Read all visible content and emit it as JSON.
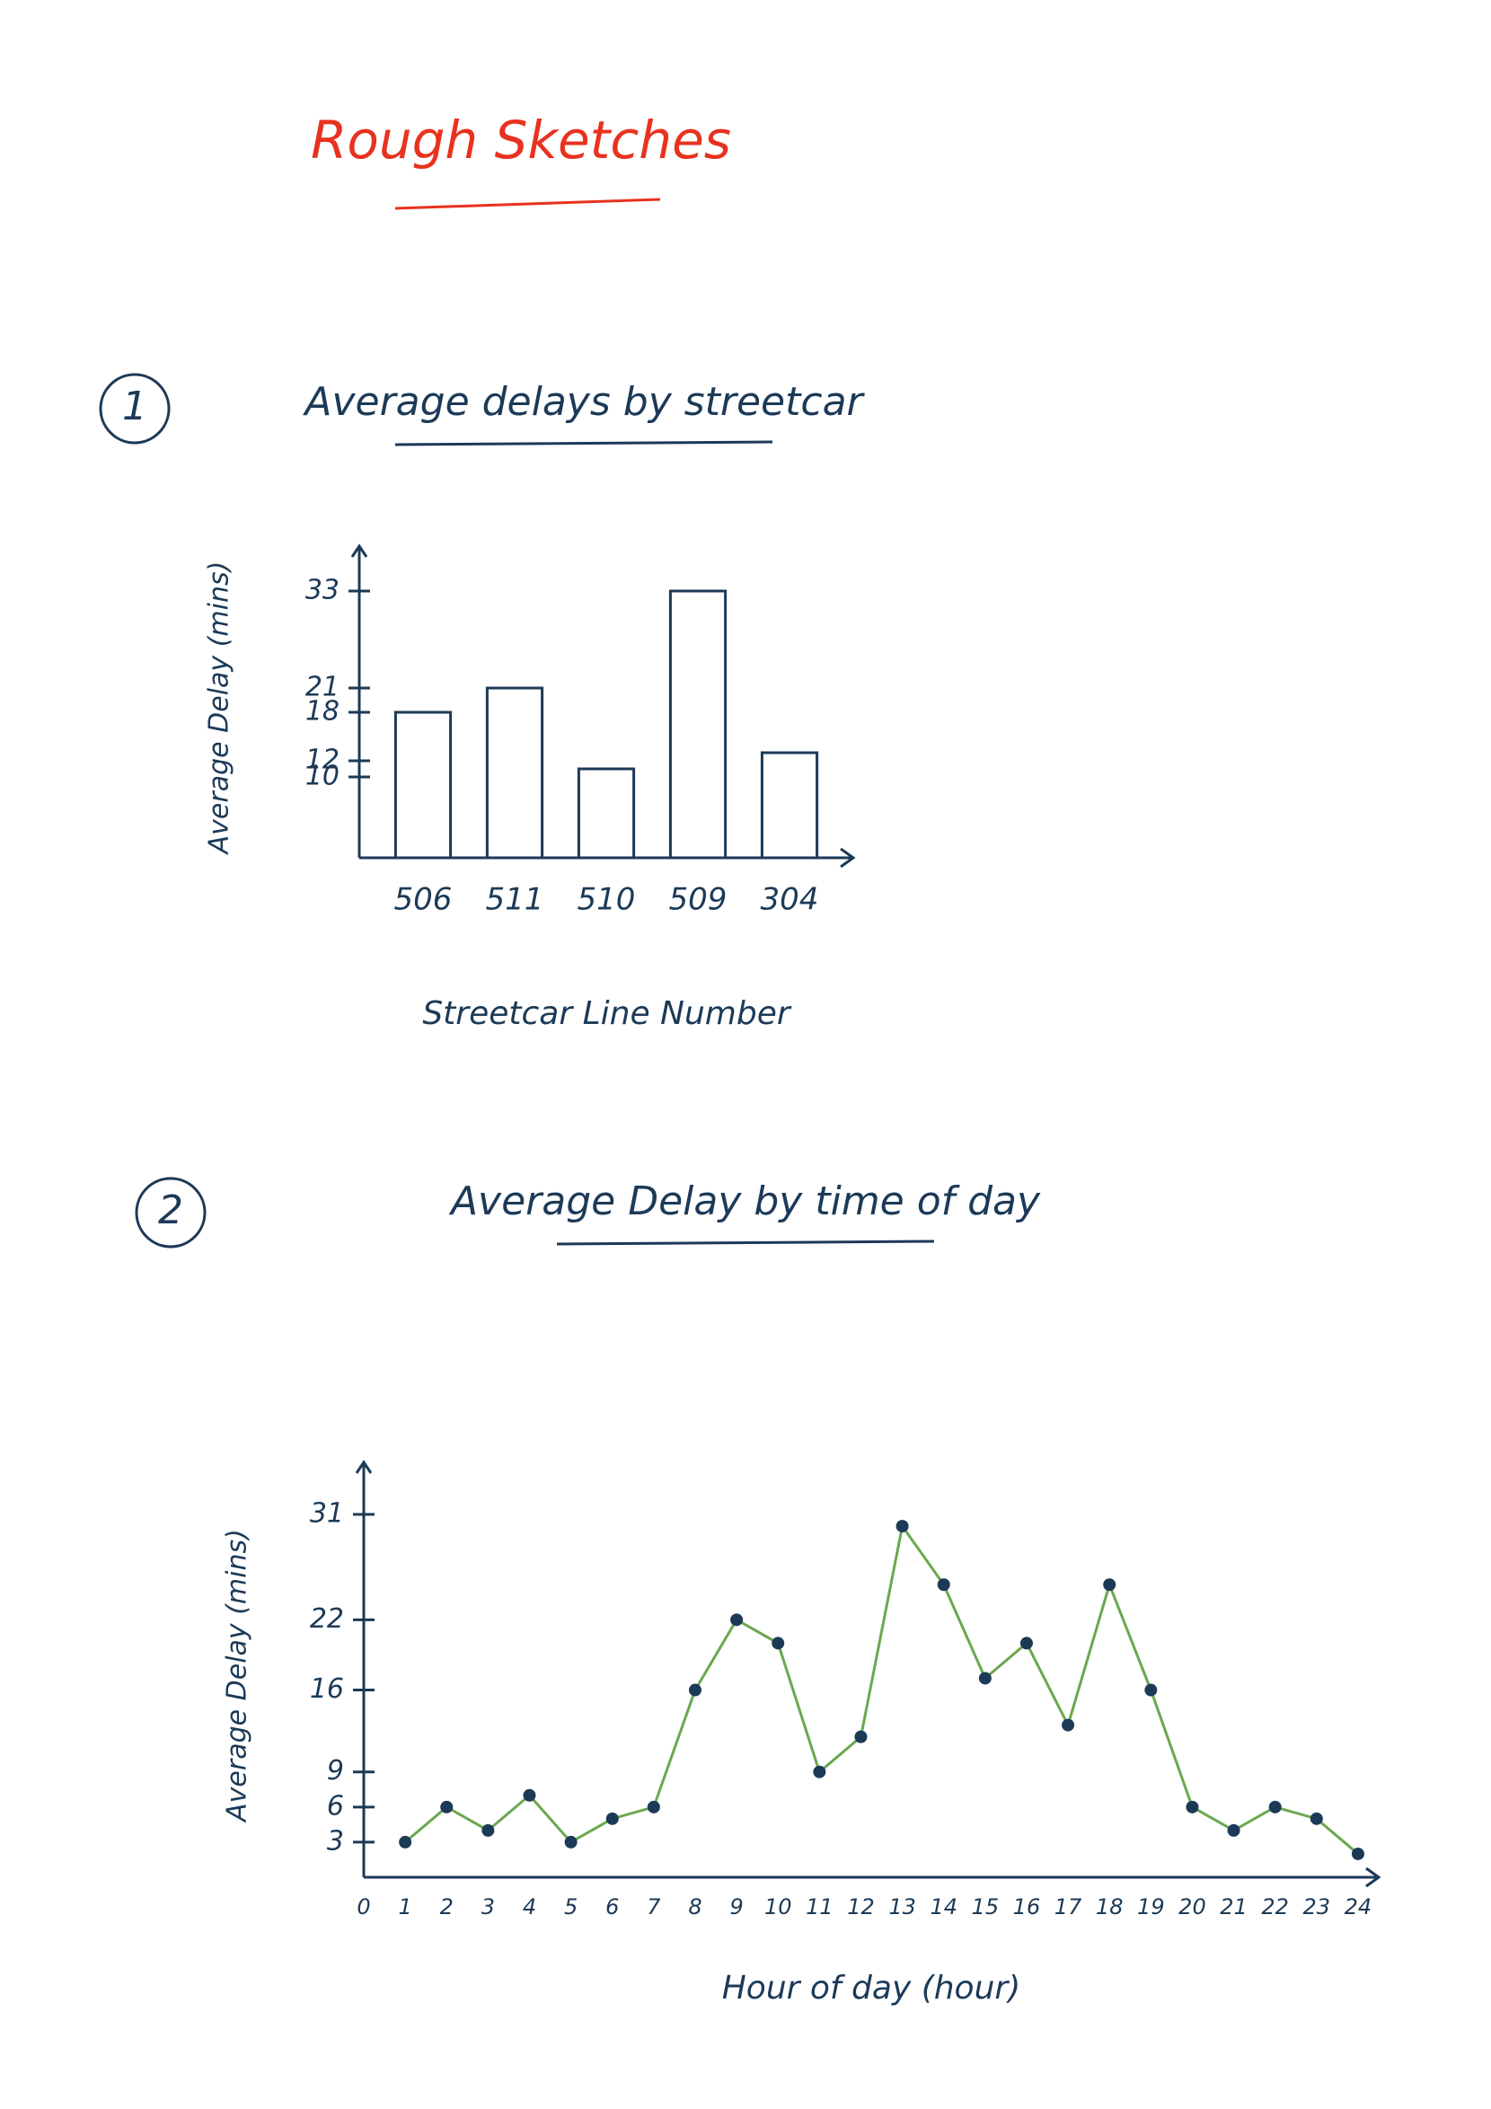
{
  "title": "Rough Sketches",
  "chart_data": [
    {
      "type": "bar",
      "number": "1",
      "title": "Average delays by streetcar",
      "x_label": "Streetcar Line Number",
      "y_label": "Average Delay (mins)",
      "categories": [
        "506",
        "511",
        "510",
        "509",
        "304"
      ],
      "values": [
        18,
        21,
        11,
        33,
        13
      ],
      "color": "#1c3a57",
      "ylim": [
        0,
        35
      ],
      "yticks": [
        10,
        12,
        18,
        21,
        33
      ],
      "grid": false
    },
    {
      "type": "line",
      "number": "2",
      "title": "Average Delay by time of day",
      "x_label": "Hour of day (hour)",
      "y_label": "Average Delay (mins)",
      "x": [
        1,
        2,
        3,
        4,
        5,
        6,
        7,
        8,
        9,
        10,
        11,
        12,
        13,
        14,
        15,
        16,
        17,
        18,
        19,
        20,
        21,
        22,
        23,
        24
      ],
      "series": [
        {
          "color": "#6aa84f",
          "marker_color": "#1c3a57",
          "values": [
            3,
            6,
            4,
            7,
            3,
            5,
            6,
            16,
            22,
            20,
            9,
            12,
            30,
            25,
            17,
            20,
            13,
            25,
            16,
            6,
            4,
            6,
            5,
            2
          ]
        }
      ],
      "xlim": [
        0,
        24.5
      ],
      "xticks": [
        0,
        1,
        2,
        3,
        4,
        5,
        6,
        7,
        8,
        9,
        10,
        11,
        12,
        13,
        14,
        15,
        16,
        17,
        18,
        19,
        20,
        21,
        22,
        23,
        24
      ],
      "ylim": [
        0,
        33
      ],
      "yticks": [
        3,
        6,
        9,
        16,
        22,
        31
      ],
      "grid": false
    }
  ]
}
